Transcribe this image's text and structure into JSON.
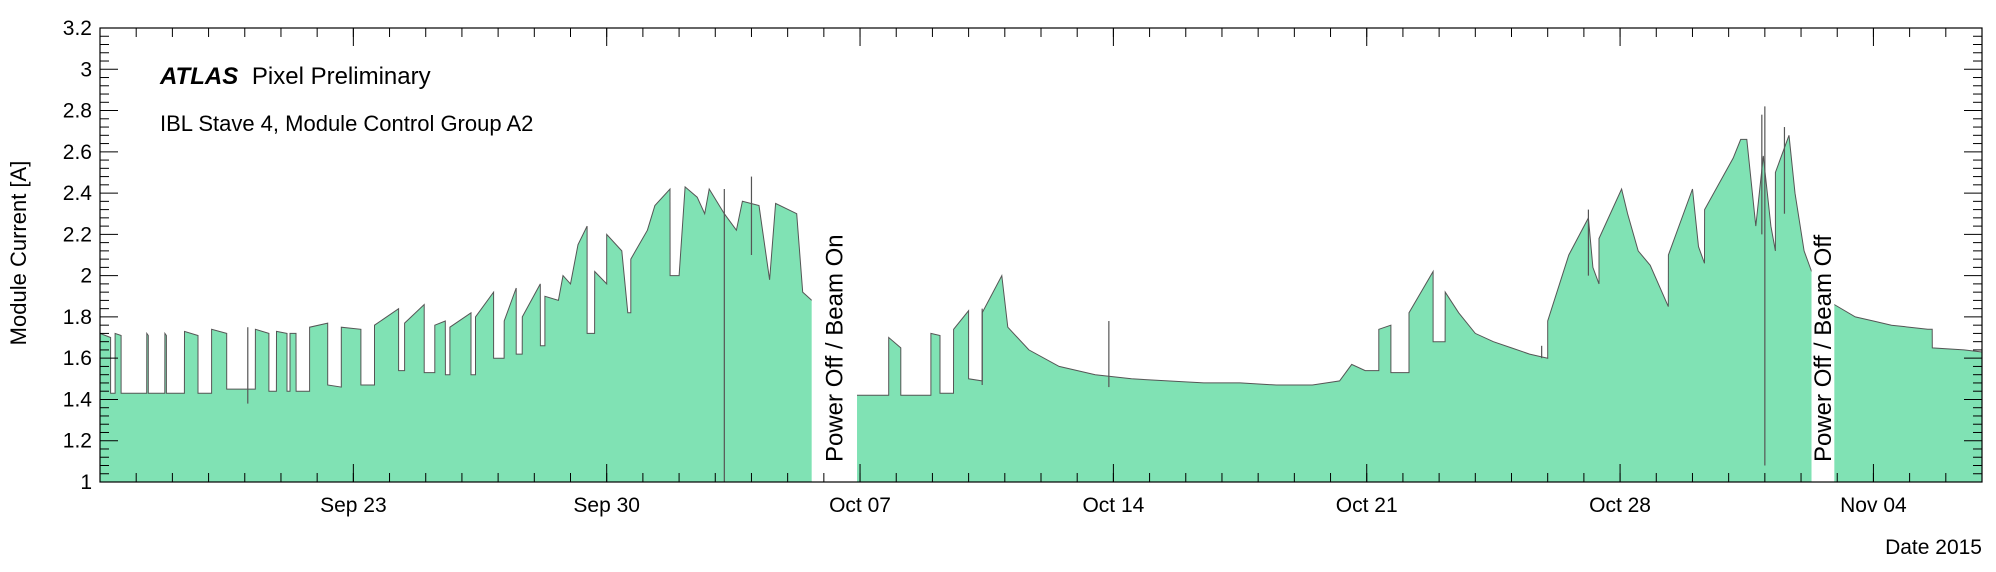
{
  "chart_data": {
    "type": "area",
    "xlabel": "Date 2015",
    "ylabel": "Module Current [A]",
    "xlim": [
      "2015-09-16",
      "2015-11-07"
    ],
    "ylim": [
      1,
      3.2
    ],
    "y_ticks": [
      1,
      1.2,
      1.4,
      1.6,
      1.8,
      2,
      2.2,
      2.4,
      2.6,
      2.8,
      3,
      3.2
    ],
    "y_tick_labels": [
      "1",
      "1.2",
      "1.4",
      "1.6",
      "1.8",
      "2",
      "2.2",
      "2.4",
      "2.6",
      "2.8",
      "3",
      "3.2"
    ],
    "x_ticks": [
      {
        "date": "2015-09-23",
        "label": "Sep 23"
      },
      {
        "date": "2015-09-30",
        "label": "Sep 30"
      },
      {
        "date": "2015-10-07",
        "label": "Oct 07"
      },
      {
        "date": "2015-10-14",
        "label": "Oct 14"
      },
      {
        "date": "2015-10-21",
        "label": "Oct 21"
      },
      {
        "date": "2015-10-28",
        "label": "Oct 28"
      },
      {
        "date": "2015-11-04",
        "label": "Nov 04"
      }
    ],
    "grid": false,
    "fill_color": "#80e2b4",
    "line_color": "#555555",
    "annotations": {
      "experiment": "ATLAS",
      "label": "Pixel Preliminary",
      "subtitle": "IBL Stave 4, Module Control Group A2",
      "gaps": [
        {
          "start": "2015-10-05T16:00",
          "end": "2015-10-06T22:00",
          "text": "Power Off / Beam On"
        },
        {
          "start": "2015-11-02T07:00",
          "end": "2015-11-02T22:00",
          "text": "Power Off / Beam Off"
        }
      ]
    },
    "series": [
      {
        "segments": [
          {
            "t": "2015-09-16T00:00",
            "v": 1.43
          },
          {
            "t": "2015-09-16T00:01",
            "v": 1.72
          },
          {
            "t": "2015-09-16T07:00",
            "v": 1.7
          },
          {
            "t": "2015-09-16T07:01",
            "v": 1.43
          },
          {
            "t": "2015-09-16T10:00",
            "v": 1.43
          },
          {
            "t": "2015-09-16T10:01",
            "v": 1.72
          },
          {
            "t": "2015-09-16T14:00",
            "v": 1.71
          },
          {
            "t": "2015-09-16T14:01",
            "v": 1.43
          },
          {
            "t": "2015-09-17T07:00",
            "v": 1.43
          },
          {
            "t": "2015-09-17T07:01",
            "v": 1.72
          },
          {
            "t": "2015-09-17T08:00",
            "v": 1.71
          },
          {
            "t": "2015-09-17T08:01",
            "v": 1.43
          },
          {
            "t": "2015-09-17T19:00",
            "v": 1.43
          },
          {
            "t": "2015-09-17T19:01",
            "v": 1.72
          },
          {
            "t": "2015-09-17T20:00",
            "v": 1.71
          },
          {
            "t": "2015-09-17T20:01",
            "v": 1.43
          },
          {
            "t": "2015-09-18T08:00",
            "v": 1.43
          },
          {
            "t": "2015-09-18T08:01",
            "v": 1.73
          },
          {
            "t": "2015-09-18T17:00",
            "v": 1.71
          },
          {
            "t": "2015-09-18T17:01",
            "v": 1.43
          },
          {
            "t": "2015-09-19T02:00",
            "v": 1.43
          },
          {
            "t": "2015-09-19T02:01",
            "v": 1.74
          },
          {
            "t": "2015-09-19T12:00",
            "v": 1.72
          },
          {
            "t": "2015-09-19T12:01",
            "v": 1.45
          },
          {
            "t": "2015-09-20T07:00",
            "v": 1.45
          },
          {
            "t": "2015-09-20T07:01",
            "v": 1.74
          },
          {
            "t": "2015-09-20T16:00",
            "v": 1.72
          },
          {
            "t": "2015-09-20T16:01",
            "v": 1.44
          },
          {
            "t": "2015-09-20T21:00",
            "v": 1.44
          },
          {
            "t": "2015-09-20T21:01",
            "v": 1.73
          },
          {
            "t": "2015-09-21T04:00",
            "v": 1.72
          },
          {
            "t": "2015-09-21T04:01",
            "v": 1.44
          },
          {
            "t": "2015-09-21T06:00",
            "v": 1.44
          },
          {
            "t": "2015-09-21T06:01",
            "v": 1.72
          },
          {
            "t": "2015-09-21T10:00",
            "v": 1.72
          },
          {
            "t": "2015-09-21T10:01",
            "v": 1.44
          },
          {
            "t": "2015-09-21T19:00",
            "v": 1.44
          },
          {
            "t": "2015-09-21T19:01",
            "v": 1.75
          },
          {
            "t": "2015-09-22T07:00",
            "v": 1.77
          },
          {
            "t": "2015-09-22T07:01",
            "v": 1.47
          },
          {
            "t": "2015-09-22T16:00",
            "v": 1.46
          },
          {
            "t": "2015-09-22T16:01",
            "v": 1.75
          },
          {
            "t": "2015-09-23T05:00",
            "v": 1.74
          },
          {
            "t": "2015-09-23T05:01",
            "v": 1.47
          },
          {
            "t": "2015-09-23T14:00",
            "v": 1.47
          },
          {
            "t": "2015-09-23T14:01",
            "v": 1.76
          },
          {
            "t": "2015-09-24T06:00",
            "v": 1.84
          },
          {
            "t": "2015-09-24T06:01",
            "v": 1.54
          },
          {
            "t": "2015-09-24T10:00",
            "v": 1.54
          },
          {
            "t": "2015-09-24T10:01",
            "v": 1.77
          },
          {
            "t": "2015-09-24T23:00",
            "v": 1.86
          },
          {
            "t": "2015-09-24T23:01",
            "v": 1.53
          },
          {
            "t": "2015-09-25T06:00",
            "v": 1.53
          },
          {
            "t": "2015-09-25T06:01",
            "v": 1.76
          },
          {
            "t": "2015-09-25T13:00",
            "v": 1.78
          },
          {
            "t": "2015-09-25T13:01",
            "v": 1.52
          },
          {
            "t": "2015-09-25T16:00",
            "v": 1.52
          },
          {
            "t": "2015-09-25T16:01",
            "v": 1.75
          },
          {
            "t": "2015-09-26T06:00",
            "v": 1.82
          },
          {
            "t": "2015-09-26T06:01",
            "v": 1.52
          },
          {
            "t": "2015-09-26T09:00",
            "v": 1.52
          },
          {
            "t": "2015-09-26T09:01",
            "v": 1.8
          },
          {
            "t": "2015-09-26T21:00",
            "v": 1.92
          },
          {
            "t": "2015-09-26T21:01",
            "v": 1.6
          },
          {
            "t": "2015-09-27T04:00",
            "v": 1.6
          },
          {
            "t": "2015-09-27T04:01",
            "v": 1.78
          },
          {
            "t": "2015-09-27T12:00",
            "v": 1.94
          },
          {
            "t": "2015-09-27T12:01",
            "v": 1.62
          },
          {
            "t": "2015-09-27T16:00",
            "v": 1.62
          },
          {
            "t": "2015-09-27T16:01",
            "v": 1.8
          },
          {
            "t": "2015-09-28T04:00",
            "v": 1.96
          },
          {
            "t": "2015-09-28T04:01",
            "v": 1.66
          },
          {
            "t": "2015-09-28T07:00",
            "v": 1.66
          },
          {
            "t": "2015-09-28T07:01",
            "v": 1.9
          },
          {
            "t": "2015-09-28T16:00",
            "v": 1.88
          },
          {
            "t": "2015-09-28T19:00",
            "v": 2.0
          },
          {
            "t": "2015-09-29T00:00",
            "v": 1.96
          },
          {
            "t": "2015-09-29T05:00",
            "v": 2.15
          },
          {
            "t": "2015-09-29T11:00",
            "v": 2.24
          },
          {
            "t": "2015-09-29T11:01",
            "v": 1.72
          },
          {
            "t": "2015-09-29T16:00",
            "v": 1.72
          },
          {
            "t": "2015-09-29T16:01",
            "v": 2.02
          },
          {
            "t": "2015-09-30T00:00",
            "v": 1.96
          },
          {
            "t": "2015-09-30T00:01",
            "v": 2.2
          },
          {
            "t": "2015-09-30T10:00",
            "v": 2.12
          },
          {
            "t": "2015-09-30T14:00",
            "v": 1.82
          },
          {
            "t": "2015-09-30T16:00",
            "v": 1.82
          },
          {
            "t": "2015-09-30T16:01",
            "v": 2.08
          },
          {
            "t": "2015-10-01T03:00",
            "v": 2.22
          },
          {
            "t": "2015-10-01T08:00",
            "v": 2.34
          },
          {
            "t": "2015-10-01T18:00",
            "v": 2.42
          },
          {
            "t": "2015-10-01T18:01",
            "v": 2.0
          },
          {
            "t": "2015-10-02T00:00",
            "v": 2.0
          },
          {
            "t": "2015-10-02T04:00",
            "v": 2.43
          },
          {
            "t": "2015-10-02T12:00",
            "v": 2.38
          },
          {
            "t": "2015-10-02T17:00",
            "v": 2.3
          },
          {
            "t": "2015-10-02T20:00",
            "v": 2.42
          },
          {
            "t": "2015-10-03T06:00",
            "v": 2.3
          },
          {
            "t": "2015-10-03T14:00",
            "v": 2.22
          },
          {
            "t": "2015-10-03T18:00",
            "v": 2.36
          },
          {
            "t": "2015-10-04T05:00",
            "v": 2.34
          },
          {
            "t": "2015-10-04T12:00",
            "v": 1.98
          },
          {
            "t": "2015-10-04T16:00",
            "v": 2.35
          },
          {
            "t": "2015-10-05T06:00",
            "v": 2.3
          },
          {
            "t": "2015-10-05T10:00",
            "v": 1.92
          },
          {
            "t": "2015-10-05T16:00",
            "v": 1.88
          }
        ]
      },
      {
        "segments": [
          {
            "t": "2015-10-06T22:00",
            "v": 1.42
          },
          {
            "t": "2015-10-07T19:00",
            "v": 1.42
          },
          {
            "t": "2015-10-07T19:01",
            "v": 1.7
          },
          {
            "t": "2015-10-08T03:00",
            "v": 1.65
          },
          {
            "t": "2015-10-08T03:01",
            "v": 1.42
          },
          {
            "t": "2015-10-08T23:00",
            "v": 1.42
          },
          {
            "t": "2015-10-08T23:01",
            "v": 1.72
          },
          {
            "t": "2015-10-09T05:00",
            "v": 1.71
          },
          {
            "t": "2015-10-09T05:01",
            "v": 1.43
          },
          {
            "t": "2015-10-09T14:00",
            "v": 1.43
          },
          {
            "t": "2015-10-09T14:01",
            "v": 1.74
          },
          {
            "t": "2015-10-10T00:00",
            "v": 1.83
          },
          {
            "t": "2015-10-10T00:01",
            "v": 1.5
          },
          {
            "t": "2015-10-10T09:00",
            "v": 1.49
          },
          {
            "t": "2015-10-10T09:01",
            "v": 1.82
          },
          {
            "t": "2015-10-10T22:00",
            "v": 2.0
          },
          {
            "t": "2015-10-11T02:00",
            "v": 1.75
          },
          {
            "t": "2015-10-11T16:00",
            "v": 1.64
          },
          {
            "t": "2015-10-12T12:00",
            "v": 1.56
          },
          {
            "t": "2015-10-13T12:00",
            "v": 1.52
          },
          {
            "t": "2015-10-14T12:00",
            "v": 1.5
          },
          {
            "t": "2015-10-15T12:00",
            "v": 1.49
          },
          {
            "t": "2015-10-16T12:00",
            "v": 1.48
          },
          {
            "t": "2015-10-17T12:00",
            "v": 1.48
          },
          {
            "t": "2015-10-18T12:00",
            "v": 1.47
          },
          {
            "t": "2015-10-19T12:00",
            "v": 1.47
          },
          {
            "t": "2015-10-20T06:00",
            "v": 1.49
          },
          {
            "t": "2015-10-20T14:00",
            "v": 1.57
          },
          {
            "t": "2015-10-20T23:00",
            "v": 1.54
          },
          {
            "t": "2015-10-21T08:00",
            "v": 1.54
          },
          {
            "t": "2015-10-21T08:01",
            "v": 1.74
          },
          {
            "t": "2015-10-21T16:00",
            "v": 1.76
          },
          {
            "t": "2015-10-21T16:01",
            "v": 1.53
          },
          {
            "t": "2015-10-22T04:00",
            "v": 1.53
          },
          {
            "t": "2015-10-22T04:01",
            "v": 1.82
          },
          {
            "t": "2015-10-22T20:00",
            "v": 2.02
          },
          {
            "t": "2015-10-22T20:01",
            "v": 1.68
          },
          {
            "t": "2015-10-23T04:00",
            "v": 1.68
          },
          {
            "t": "2015-10-23T04:01",
            "v": 1.92
          },
          {
            "t": "2015-10-23T13:00",
            "v": 1.82
          },
          {
            "t": "2015-10-24T00:00",
            "v": 1.72
          },
          {
            "t": "2015-10-24T12:00",
            "v": 1.68
          },
          {
            "t": "2015-10-25T00:00",
            "v": 1.65
          },
          {
            "t": "2015-10-25T12:00",
            "v": 1.62
          },
          {
            "t": "2015-10-26T00:00",
            "v": 1.6
          },
          {
            "t": "2015-10-26T00:01",
            "v": 1.78
          },
          {
            "t": "2015-10-26T14:00",
            "v": 2.1
          },
          {
            "t": "2015-10-27T03:00",
            "v": 2.28
          },
          {
            "t": "2015-10-27T06:00",
            "v": 2.04
          },
          {
            "t": "2015-10-27T10:00",
            "v": 1.96
          },
          {
            "t": "2015-10-27T10:01",
            "v": 2.18
          },
          {
            "t": "2015-10-28T01:00",
            "v": 2.42
          },
          {
            "t": "2015-10-28T05:00",
            "v": 2.3
          },
          {
            "t": "2015-10-28T12:00",
            "v": 2.12
          },
          {
            "t": "2015-10-28T20:00",
            "v": 2.05
          },
          {
            "t": "2015-10-29T08:00",
            "v": 1.85
          },
          {
            "t": "2015-10-29T08:01",
            "v": 2.1
          },
          {
            "t": "2015-10-30T00:00",
            "v": 2.42
          },
          {
            "t": "2015-10-30T04:00",
            "v": 2.14
          },
          {
            "t": "2015-10-30T08:00",
            "v": 2.06
          },
          {
            "t": "2015-10-30T08:01",
            "v": 2.32
          },
          {
            "t": "2015-10-31T03:00",
            "v": 2.57
          },
          {
            "t": "2015-10-31T08:00",
            "v": 2.66
          },
          {
            "t": "2015-10-31T12:00",
            "v": 2.66
          },
          {
            "t": "2015-10-31T18:00",
            "v": 2.24
          },
          {
            "t": "2015-10-31T23:00",
            "v": 2.58
          },
          {
            "t": "2015-11-01T04:00",
            "v": 2.24
          },
          {
            "t": "2015-11-01T07:00",
            "v": 2.12
          },
          {
            "t": "2015-11-01T07:01",
            "v": 2.5
          },
          {
            "t": "2015-11-01T16:00",
            "v": 2.68
          },
          {
            "t": "2015-11-01T20:00",
            "v": 2.4
          },
          {
            "t": "2015-11-02T02:00",
            "v": 2.12
          },
          {
            "t": "2015-11-02T07:00",
            "v": 2.02
          }
        ]
      },
      {
        "segments": [
          {
            "t": "2015-11-02T22:00",
            "v": 1.86
          },
          {
            "t": "2015-11-03T12:00",
            "v": 1.8
          },
          {
            "t": "2015-11-04T00:00",
            "v": 1.78
          },
          {
            "t": "2015-11-04T12:00",
            "v": 1.76
          },
          {
            "t": "2015-11-05T00:00",
            "v": 1.75
          },
          {
            "t": "2015-11-05T12:00",
            "v": 1.74
          },
          {
            "t": "2015-11-05T15:00",
            "v": 1.74
          },
          {
            "t": "2015-11-05T15:01",
            "v": 1.65
          },
          {
            "t": "2015-11-06T12:00",
            "v": 1.64
          },
          {
            "t": "2015-11-07T00:00",
            "v": 1.63
          }
        ]
      }
    ],
    "spikes": [
      {
        "t": "2015-10-03T06:00",
        "v0": 1.0,
        "v1": 2.42
      },
      {
        "t": "2015-10-04T00:00",
        "v0": 2.1,
        "v1": 2.48
      },
      {
        "t": "2015-11-01T00:00",
        "v0": 1.08,
        "v1": 2.82
      },
      {
        "t": "2015-10-31T22:00",
        "v0": 2.2,
        "v1": 2.78
      },
      {
        "t": "2015-11-01T13:00",
        "v0": 2.3,
        "v1": 2.72
      },
      {
        "t": "2015-09-20T02:00",
        "v0": 1.38,
        "v1": 1.75
      },
      {
        "t": "2015-10-10T09:00",
        "v0": 1.47,
        "v1": 1.84
      },
      {
        "t": "2015-10-25T20:00",
        "v0": 1.6,
        "v1": 1.66
      },
      {
        "t": "2015-10-13T21:00",
        "v0": 1.46,
        "v1": 1.78
      },
      {
        "t": "2015-10-27T03:00",
        "v0": 2.0,
        "v1": 2.32
      }
    ]
  }
}
